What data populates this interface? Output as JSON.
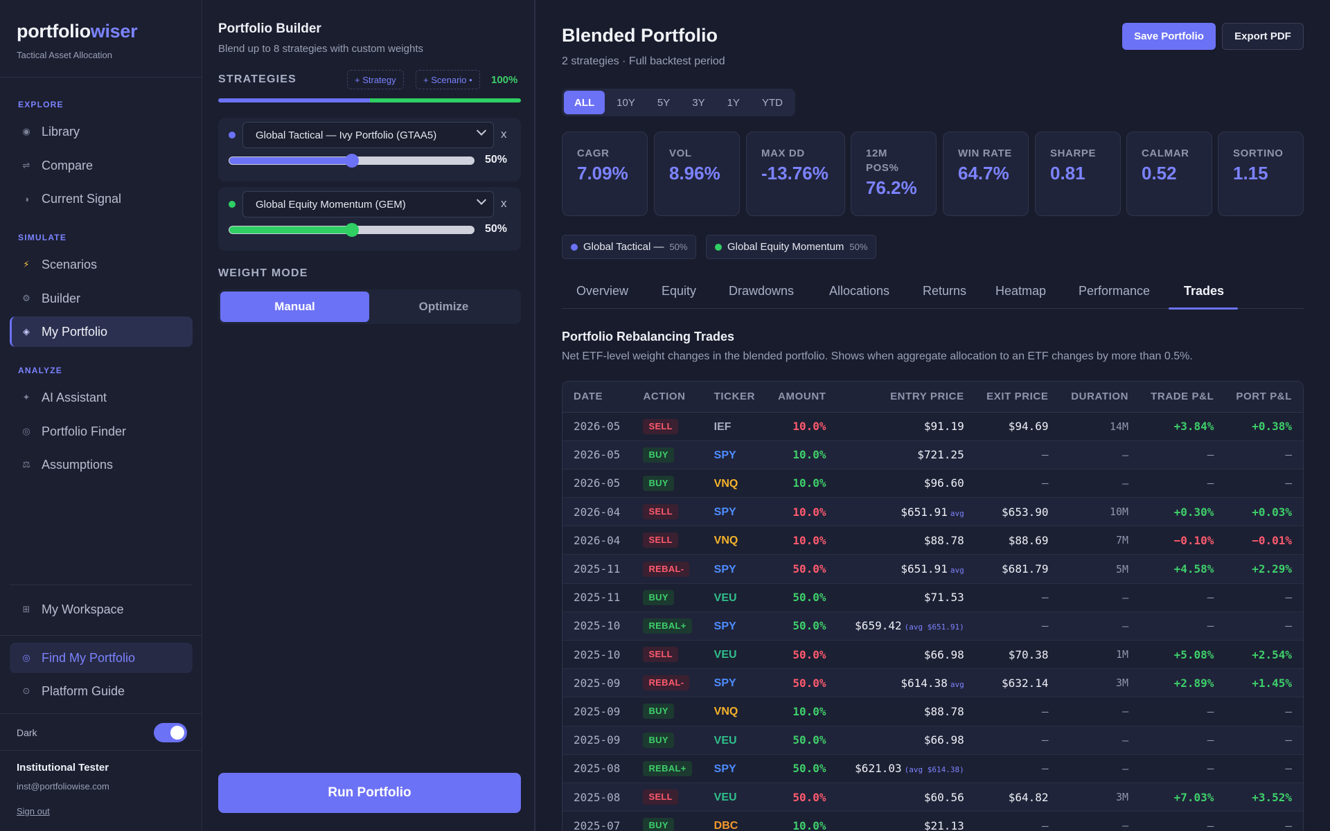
{
  "brand": {
    "name_main": "portfolio",
    "name_accent": "wiser",
    "tagline": "Tactical Asset Allocation"
  },
  "sidebar": {
    "sections": {
      "explore": "EXPLORE",
      "simulate": "SIMULATE",
      "analyze": "ANALYZE"
    },
    "items": {
      "library": "Library",
      "compare": "Compare",
      "current_signal": "Current Signal",
      "scenarios": "Scenarios",
      "builder": "Builder",
      "my_portfolio": "My Portfolio",
      "ai_assistant": "AI Assistant",
      "portfolio_finder": "Portfolio Finder",
      "assumptions": "Assumptions",
      "my_workspace": "My Workspace",
      "find_my_portfolio": "Find My Portfolio",
      "platform_guide": "Platform Guide"
    },
    "dark_label": "Dark",
    "dark_on": true,
    "user_name": "Institutional Tester",
    "user_email": "inst@portfoliowise.com",
    "sign_out": "Sign out"
  },
  "builder": {
    "title": "Portfolio Builder",
    "subtitle": "Blend up to 8 strategies with custom weights",
    "strategies_label": "STRATEGIES",
    "add_strategy": "+ Strategy",
    "add_scenario": "+ Scenario •",
    "total_pct": "100%",
    "strategies": [
      {
        "name": "Global Tactical — Ivy Portfolio (GTAA5)",
        "weight": 0.5,
        "weight_label": "50%",
        "remove": "x",
        "color": "#6c72f5"
      },
      {
        "name": "Global Equity Momentum (GEM)",
        "weight": 0.5,
        "weight_label": "50%",
        "remove": "x",
        "color": "#2fcf63"
      }
    ],
    "weight_mode_label": "WEIGHT MODE",
    "mode_manual": "Manual",
    "mode_optimize": "Optimize",
    "run_button": "Run Portfolio"
  },
  "main": {
    "title": "Blended Portfolio",
    "subtitle": "2 strategies · Full backtest period",
    "save_button": "Save Portfolio",
    "export_button": "Export PDF",
    "periods": [
      "ALL",
      "10Y",
      "5Y",
      "3Y",
      "1Y",
      "YTD"
    ],
    "active_period": "ALL",
    "metrics": [
      {
        "label": "CAGR",
        "value": "7.09%"
      },
      {
        "label": "VOL",
        "value": "8.96%"
      },
      {
        "label": "MAX DD",
        "value": "-13.76%"
      },
      {
        "label": "12M POS%",
        "value": "76.2%"
      },
      {
        "label": "WIN RATE",
        "value": "64.7%"
      },
      {
        "label": "SHARPE",
        "value": "0.81"
      },
      {
        "label": "CALMAR",
        "value": "0.52"
      },
      {
        "label": "SORTINO",
        "value": "1.15"
      }
    ],
    "legend": [
      {
        "name": "Global Tactical —",
        "weight": "50%",
        "color": "#6c72f5"
      },
      {
        "name": "Global Equity Momentum",
        "weight": "50%",
        "color": "#2fcf63"
      }
    ],
    "tabs": [
      "Overview",
      "Equity",
      "Drawdowns",
      "Allocations",
      "Returns",
      "Heatmap",
      "Performance",
      "Trades"
    ],
    "active_tab": "Trades",
    "section_title": "Portfolio Rebalancing Trades",
    "section_desc": "Net ETF-level weight changes in the blended portfolio. Shows when aggregate allocation to an ETF changes by more than 0.5%.",
    "columns": [
      "DATE",
      "ACTION",
      "TICKER",
      "AMOUNT",
      "ENTRY PRICE",
      "EXIT PRICE",
      "DURATION",
      "TRADE P&L",
      "PORT P&L"
    ],
    "rows": [
      {
        "date": "2026-05",
        "action": "SELL",
        "ticker": "IEF",
        "amount": "10.0%",
        "entry": "$91.19",
        "entry_note": "",
        "exit": "$94.69",
        "duration": "14M",
        "trade_pl": "+3.84%",
        "port_pl": "+0.38%"
      },
      {
        "date": "2026-05",
        "action": "BUY",
        "ticker": "SPY",
        "amount": "10.0%",
        "entry": "$721.25",
        "entry_note": "",
        "exit": "—",
        "duration": "—",
        "trade_pl": "—",
        "port_pl": "—"
      },
      {
        "date": "2026-05",
        "action": "BUY",
        "ticker": "VNQ",
        "amount": "10.0%",
        "entry": "$96.60",
        "entry_note": "",
        "exit": "—",
        "duration": "—",
        "trade_pl": "—",
        "port_pl": "—"
      },
      {
        "date": "2026-04",
        "action": "SELL",
        "ticker": "SPY",
        "amount": "10.0%",
        "entry": "$651.91",
        "entry_note": "avg",
        "exit": "$653.90",
        "duration": "10M",
        "trade_pl": "+0.30%",
        "port_pl": "+0.03%"
      },
      {
        "date": "2026-04",
        "action": "SELL",
        "ticker": "VNQ",
        "amount": "10.0%",
        "entry": "$88.78",
        "entry_note": "",
        "exit": "$88.69",
        "duration": "7M",
        "trade_pl": "−0.10%",
        "port_pl": "−0.01%"
      },
      {
        "date": "2025-11",
        "action": "REBAL-",
        "ticker": "SPY",
        "amount": "50.0%",
        "entry": "$651.91",
        "entry_note": "avg",
        "exit": "$681.79",
        "duration": "5M",
        "trade_pl": "+4.58%",
        "port_pl": "+2.29%"
      },
      {
        "date": "2025-11",
        "action": "BUY",
        "ticker": "VEU",
        "amount": "50.0%",
        "entry": "$71.53",
        "entry_note": "",
        "exit": "—",
        "duration": "—",
        "trade_pl": "—",
        "port_pl": "—"
      },
      {
        "date": "2025-10",
        "action": "REBAL+",
        "ticker": "SPY",
        "amount": "50.0%",
        "entry": "$659.42",
        "entry_note": "(avg $651.91)",
        "exit": "—",
        "duration": "—",
        "trade_pl": "—",
        "port_pl": "—"
      },
      {
        "date": "2025-10",
        "action": "SELL",
        "ticker": "VEU",
        "amount": "50.0%",
        "entry": "$66.98",
        "entry_note": "",
        "exit": "$70.38",
        "duration": "1M",
        "trade_pl": "+5.08%",
        "port_pl": "+2.54%"
      },
      {
        "date": "2025-09",
        "action": "REBAL-",
        "ticker": "SPY",
        "amount": "50.0%",
        "entry": "$614.38",
        "entry_note": "avg",
        "exit": "$632.14",
        "duration": "3M",
        "trade_pl": "+2.89%",
        "port_pl": "+1.45%"
      },
      {
        "date": "2025-09",
        "action": "BUY",
        "ticker": "VNQ",
        "amount": "10.0%",
        "entry": "$88.78",
        "entry_note": "",
        "exit": "—",
        "duration": "—",
        "trade_pl": "—",
        "port_pl": "—"
      },
      {
        "date": "2025-09",
        "action": "BUY",
        "ticker": "VEU",
        "amount": "50.0%",
        "entry": "$66.98",
        "entry_note": "",
        "exit": "—",
        "duration": "—",
        "trade_pl": "—",
        "port_pl": "—"
      },
      {
        "date": "2025-08",
        "action": "REBAL+",
        "ticker": "SPY",
        "amount": "50.0%",
        "entry": "$621.03",
        "entry_note": "(avg $614.38)",
        "exit": "—",
        "duration": "—",
        "trade_pl": "—",
        "port_pl": "—"
      },
      {
        "date": "2025-08",
        "action": "SELL",
        "ticker": "VEU",
        "amount": "50.0%",
        "entry": "$60.56",
        "entry_note": "",
        "exit": "$64.82",
        "duration": "3M",
        "trade_pl": "+7.03%",
        "port_pl": "+3.52%"
      },
      {
        "date": "2025-07",
        "action": "BUY",
        "ticker": "DBC",
        "amount": "10.0%",
        "entry": "$21.13",
        "entry_note": "",
        "exit": "—",
        "duration": "—",
        "trade_pl": "—",
        "port_pl": "—"
      }
    ],
    "colors": {
      "accent": "#6c72f5",
      "positive": "#3ecf6a",
      "negative": "#ff5a6e",
      "tickers": {
        "IEF": "#a9aec4",
        "SPY": "#4d8dff",
        "VNQ": "#f5b32a",
        "VEU": "#2fbf8a",
        "DBC": "#f59a2a"
      }
    }
  }
}
